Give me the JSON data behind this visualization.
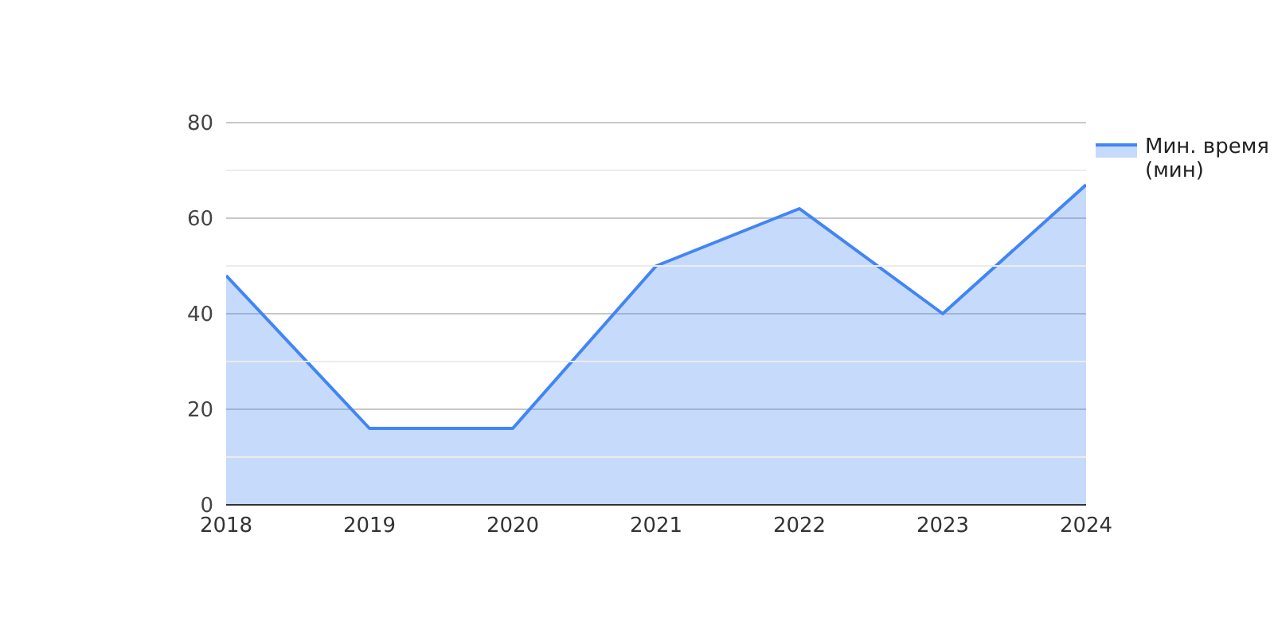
{
  "chart_data": {
    "type": "area",
    "categories": [
      "2018",
      "2019",
      "2020",
      "2021",
      "2022",
      "2023",
      "2024"
    ],
    "series": [
      {
        "name": "Мин. время (мин)",
        "color": "#4285f4",
        "values": [
          48,
          16,
          16,
          50,
          62,
          40,
          67
        ]
      }
    ],
    "ylim": [
      0,
      80
    ],
    "yticks": [
      0,
      {
        "value": 10,
        "label": null
      },
      20,
      {
        "value": 30,
        "label": null
      },
      40,
      {
        "value": 50,
        "label": null
      },
      60,
      {
        "value": 70,
        "label": null
      },
      80
    ],
    "grid": "y",
    "legend": "top right"
  }
}
